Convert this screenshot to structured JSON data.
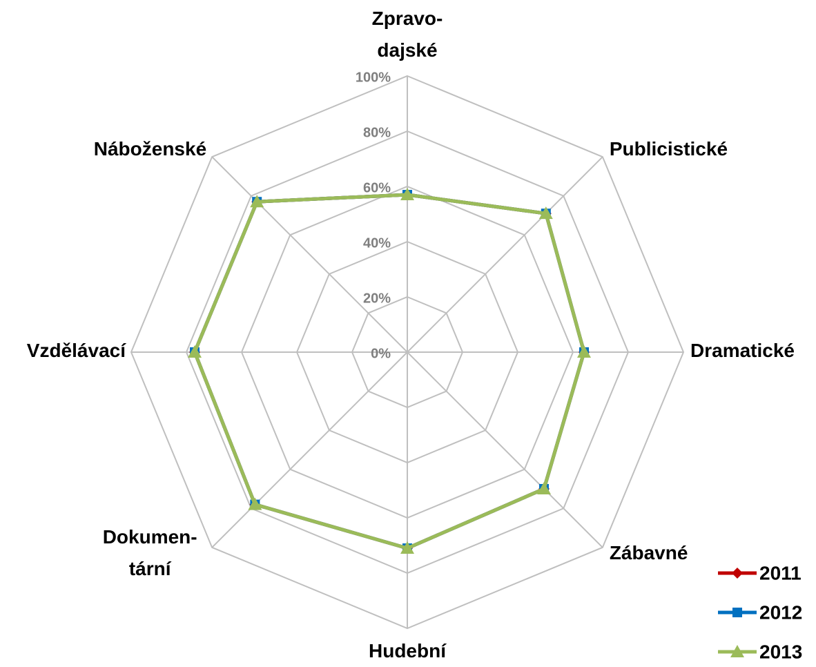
{
  "chart_data": {
    "type": "radar",
    "categories": [
      "Zpravo-\ndajské",
      "Publicistické",
      "Dramatické",
      "Zábavné",
      "Hudební",
      "Dokumen-\ntární",
      "Vzdělávací",
      "Náboženské"
    ],
    "series": [
      {
        "name": "2011",
        "color": "#c00000",
        "marker": "diamond",
        "values": [
          57,
          71,
          64,
          70,
          71,
          78,
          77,
          77
        ]
      },
      {
        "name": "2012",
        "color": "#0070c0",
        "marker": "square",
        "values": [
          57,
          71,
          64,
          70,
          71,
          78,
          77,
          77
        ]
      },
      {
        "name": "2013",
        "color": "#9bbb59",
        "marker": "triangle",
        "values": [
          57,
          71,
          64,
          70,
          71,
          78,
          77,
          77
        ]
      }
    ],
    "rlim": [
      0,
      100
    ],
    "rticks": [
      {
        "value": 0,
        "label": "0%"
      },
      {
        "value": 20,
        "label": "20%"
      },
      {
        "value": 40,
        "label": "40%"
      },
      {
        "value": 60,
        "label": "60%"
      },
      {
        "value": 80,
        "label": "80%"
      },
      {
        "value": 100,
        "label": "100%"
      }
    ],
    "grid": true,
    "legend": "lower right"
  }
}
